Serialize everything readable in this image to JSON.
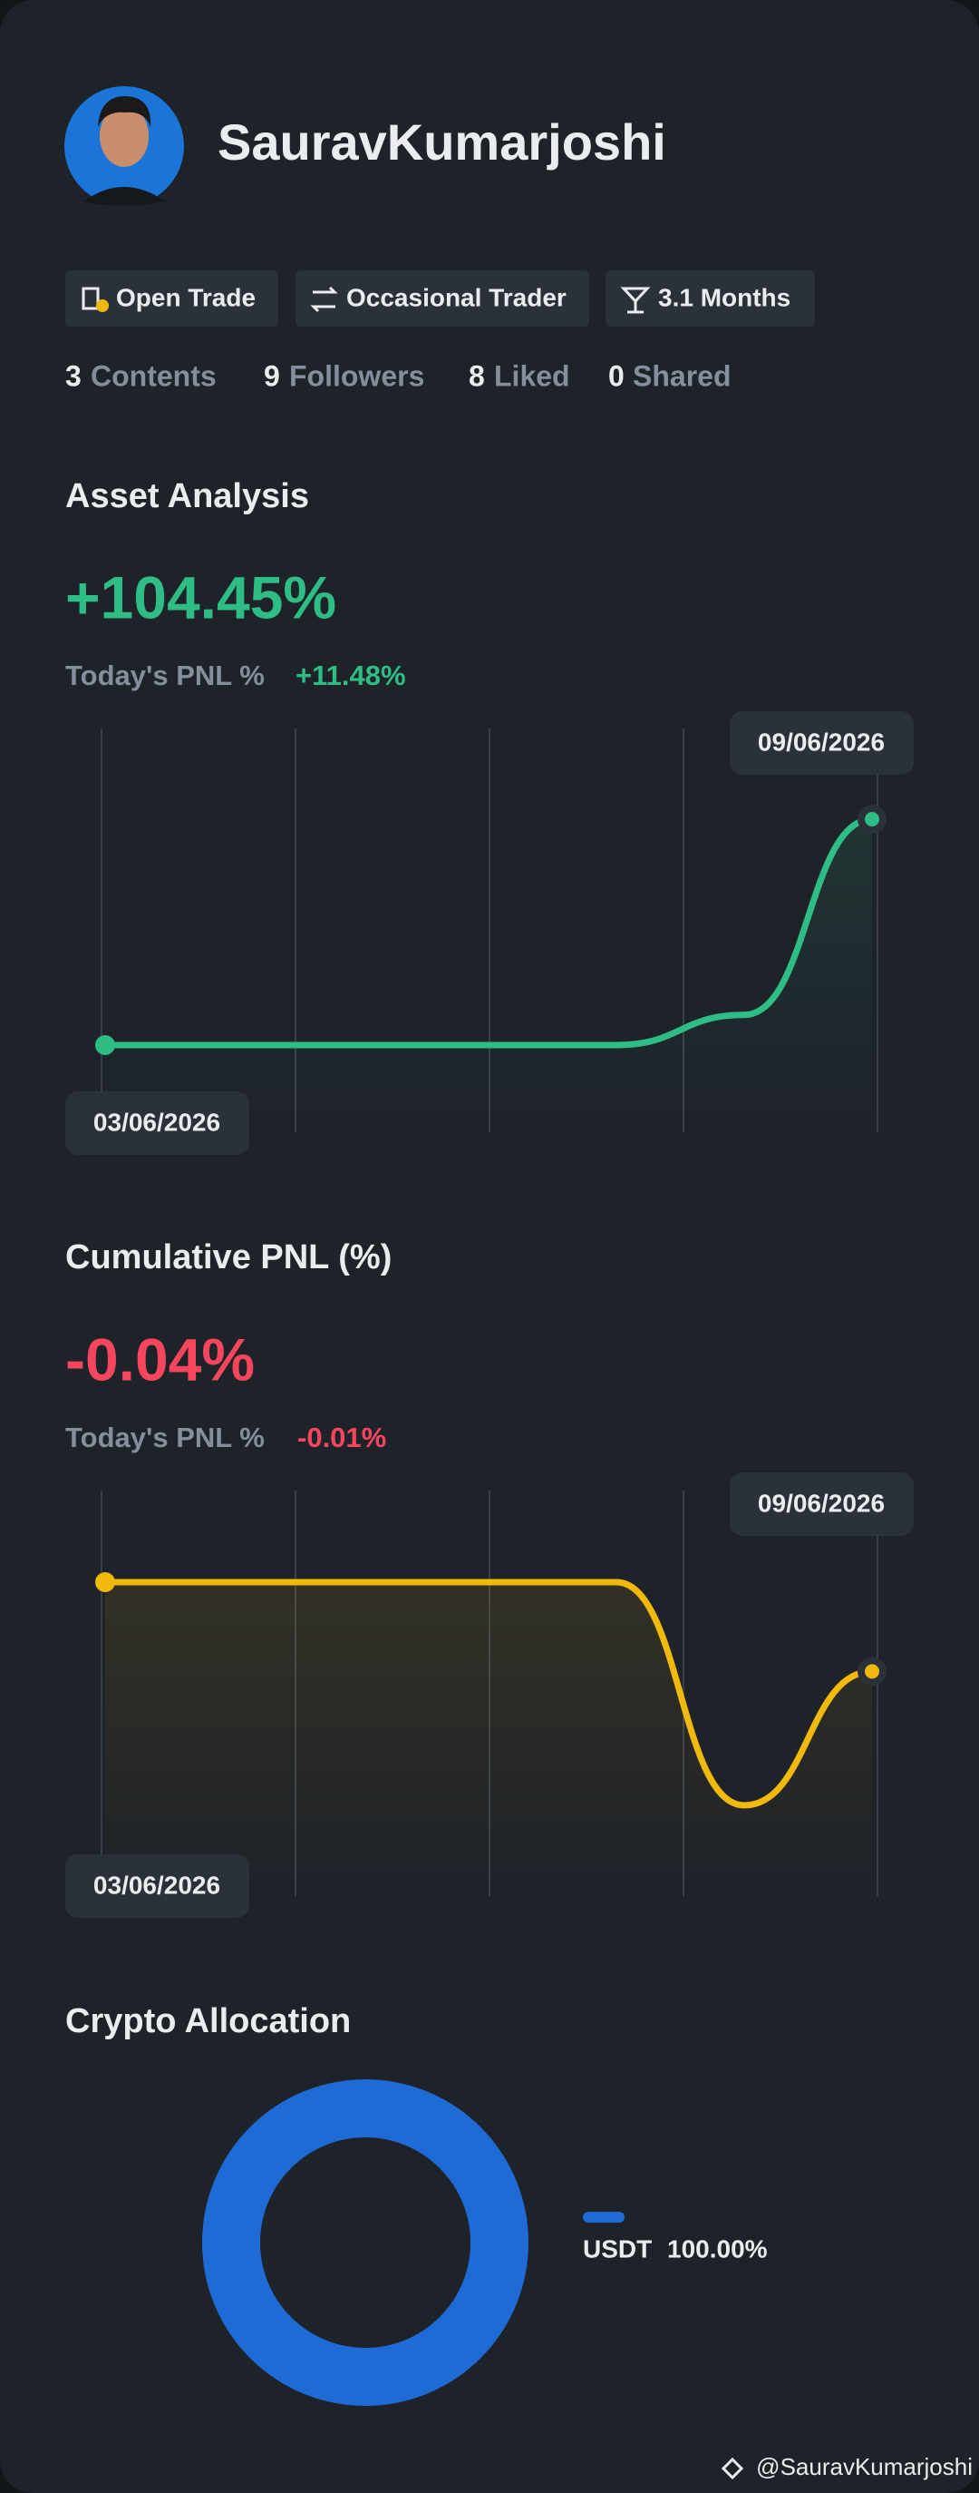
{
  "profile": {
    "name": "SauravKumarjoshi",
    "tags": [
      "Open Trade",
      "Occasional Trader",
      "3.1 Months"
    ],
    "stats": [
      {
        "count": 3,
        "label": "Contents"
      },
      {
        "count": 9,
        "label": "Followers"
      },
      {
        "count": 8,
        "label": "Liked"
      },
      {
        "count": 0,
        "label": "Shared"
      }
    ]
  },
  "chart_data": [
    {
      "type": "line",
      "title": "Asset Analysis",
      "headline": "+104.45%",
      "today_label": "Today's PNL %",
      "today_value": "+11.48%",
      "categories": [
        "03/06/2026",
        null,
        null,
        null,
        null,
        null,
        "09/06/2026"
      ],
      "series": [
        {
          "color": "#2ebd85",
          "values": [
            0,
            0,
            0,
            0,
            0,
            14,
            104.45
          ]
        }
      ]
    },
    {
      "type": "line",
      "title": "Cumulative PNL (%)",
      "headline": "-0.04%",
      "today_label": "Today's PNL %",
      "today_value": "-0.01%",
      "categories": [
        "03/06/2026",
        null,
        null,
        null,
        null,
        null,
        "09/06/2026"
      ],
      "series": [
        {
          "color": "#f0b90b",
          "values": [
            0,
            0,
            0,
            0,
            0,
            -0.1,
            -0.04
          ]
        }
      ]
    },
    {
      "type": "pie",
      "title": "Crypto Allocation",
      "categories": [
        "USDT"
      ],
      "values": [
        100
      ],
      "value_labels": [
        "100.00%"
      ],
      "colors": [
        "#1e6bd6"
      ]
    }
  ],
  "footer": "@SauravKumarjoshi"
}
